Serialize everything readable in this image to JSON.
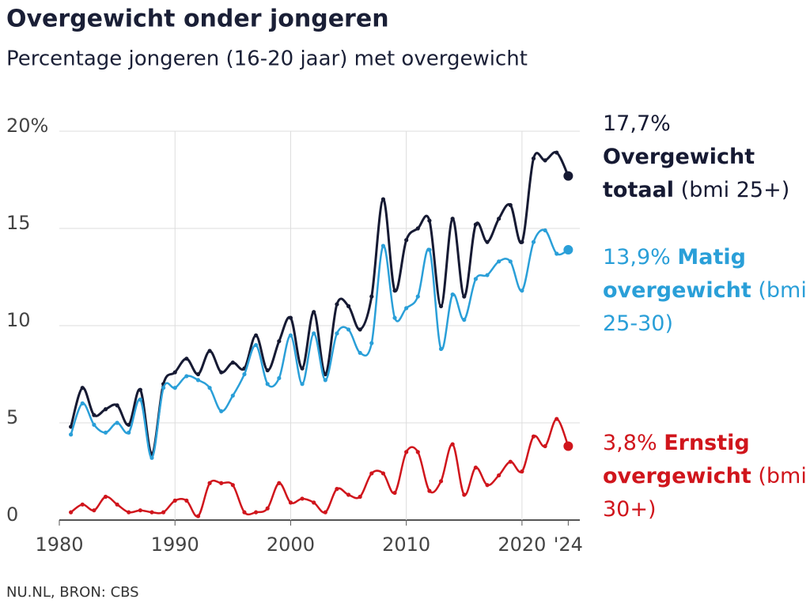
{
  "chart_data": {
    "type": "line",
    "title": "Overgewicht onder jongeren",
    "subtitle": "Percentage jongeren (16-20 jaar) met overgewicht",
    "source": "NU.NL, BRON: CBS",
    "x": [
      1981,
      1982,
      1983,
      1984,
      1985,
      1986,
      1987,
      1988,
      1989,
      1990,
      1991,
      1992,
      1993,
      1994,
      1995,
      1996,
      1997,
      1998,
      1999,
      2000,
      2001,
      2002,
      2003,
      2004,
      2005,
      2006,
      2007,
      2008,
      2009,
      2010,
      2011,
      2012,
      2013,
      2014,
      2015,
      2016,
      2017,
      2018,
      2019,
      2020,
      2021,
      2022,
      2023,
      2024
    ],
    "series": [
      {
        "name": "Overgewicht totaal",
        "end_label": "17,7%",
        "note": "(bmi 25+)",
        "color": "#161a33",
        "values": [
          4.8,
          6.8,
          5.4,
          5.7,
          5.9,
          4.9,
          6.7,
          3.4,
          7.0,
          7.6,
          8.3,
          7.5,
          8.7,
          7.6,
          8.1,
          7.8,
          9.5,
          7.7,
          9.2,
          10.4,
          7.8,
          10.7,
          7.5,
          11.1,
          11.0,
          9.8,
          11.5,
          16.5,
          11.8,
          14.4,
          15.0,
          15.4,
          11.0,
          15.5,
          11.5,
          15.2,
          14.3,
          15.5,
          16.2,
          14.3,
          18.6,
          18.5,
          18.9,
          17.7
        ]
      },
      {
        "name": "Matig overgewicht",
        "end_label": "13,9%",
        "note": "(bmi 25-30)",
        "color": "#2a9fd8",
        "values": [
          4.4,
          6.0,
          4.9,
          4.5,
          5.0,
          4.5,
          6.2,
          3.2,
          6.8,
          6.8,
          7.4,
          7.2,
          6.8,
          5.6,
          6.4,
          7.5,
          9.0,
          7.0,
          7.3,
          9.5,
          7.0,
          9.6,
          7.2,
          9.6,
          9.8,
          8.6,
          9.1,
          14.1,
          10.4,
          10.9,
          11.5,
          13.9,
          8.8,
          11.6,
          10.3,
          12.4,
          12.6,
          13.3,
          13.3,
          11.8,
          14.3,
          14.9,
          13.7,
          13.9
        ]
      },
      {
        "name": "Ernstig overgewicht",
        "end_label": "3,8%",
        "note": "(bmi 30+)",
        "color": "#d0151c",
        "values": [
          0.4,
          0.8,
          0.5,
          1.2,
          0.8,
          0.4,
          0.5,
          0.4,
          0.4,
          1.0,
          1.0,
          0.2,
          1.9,
          1.9,
          1.8,
          0.4,
          0.4,
          0.6,
          1.9,
          0.9,
          1.1,
          0.9,
          0.4,
          1.6,
          1.3,
          1.2,
          2.4,
          2.4,
          1.4,
          3.5,
          3.5,
          1.5,
          2.0,
          3.9,
          1.3,
          2.7,
          1.8,
          2.3,
          3.0,
          2.5,
          4.3,
          3.8,
          5.2,
          3.8
        ]
      }
    ],
    "xlim": [
      1980,
      2025
    ],
    "xticks": [
      1980,
      1990,
      2000,
      2010,
      2020,
      {
        "value": 2024,
        "label": "'24"
      }
    ],
    "ylim": [
      0,
      20
    ],
    "yticks": [
      0,
      5,
      10,
      15,
      {
        "value": 20,
        "label": "20%"
      }
    ],
    "grid": true
  }
}
